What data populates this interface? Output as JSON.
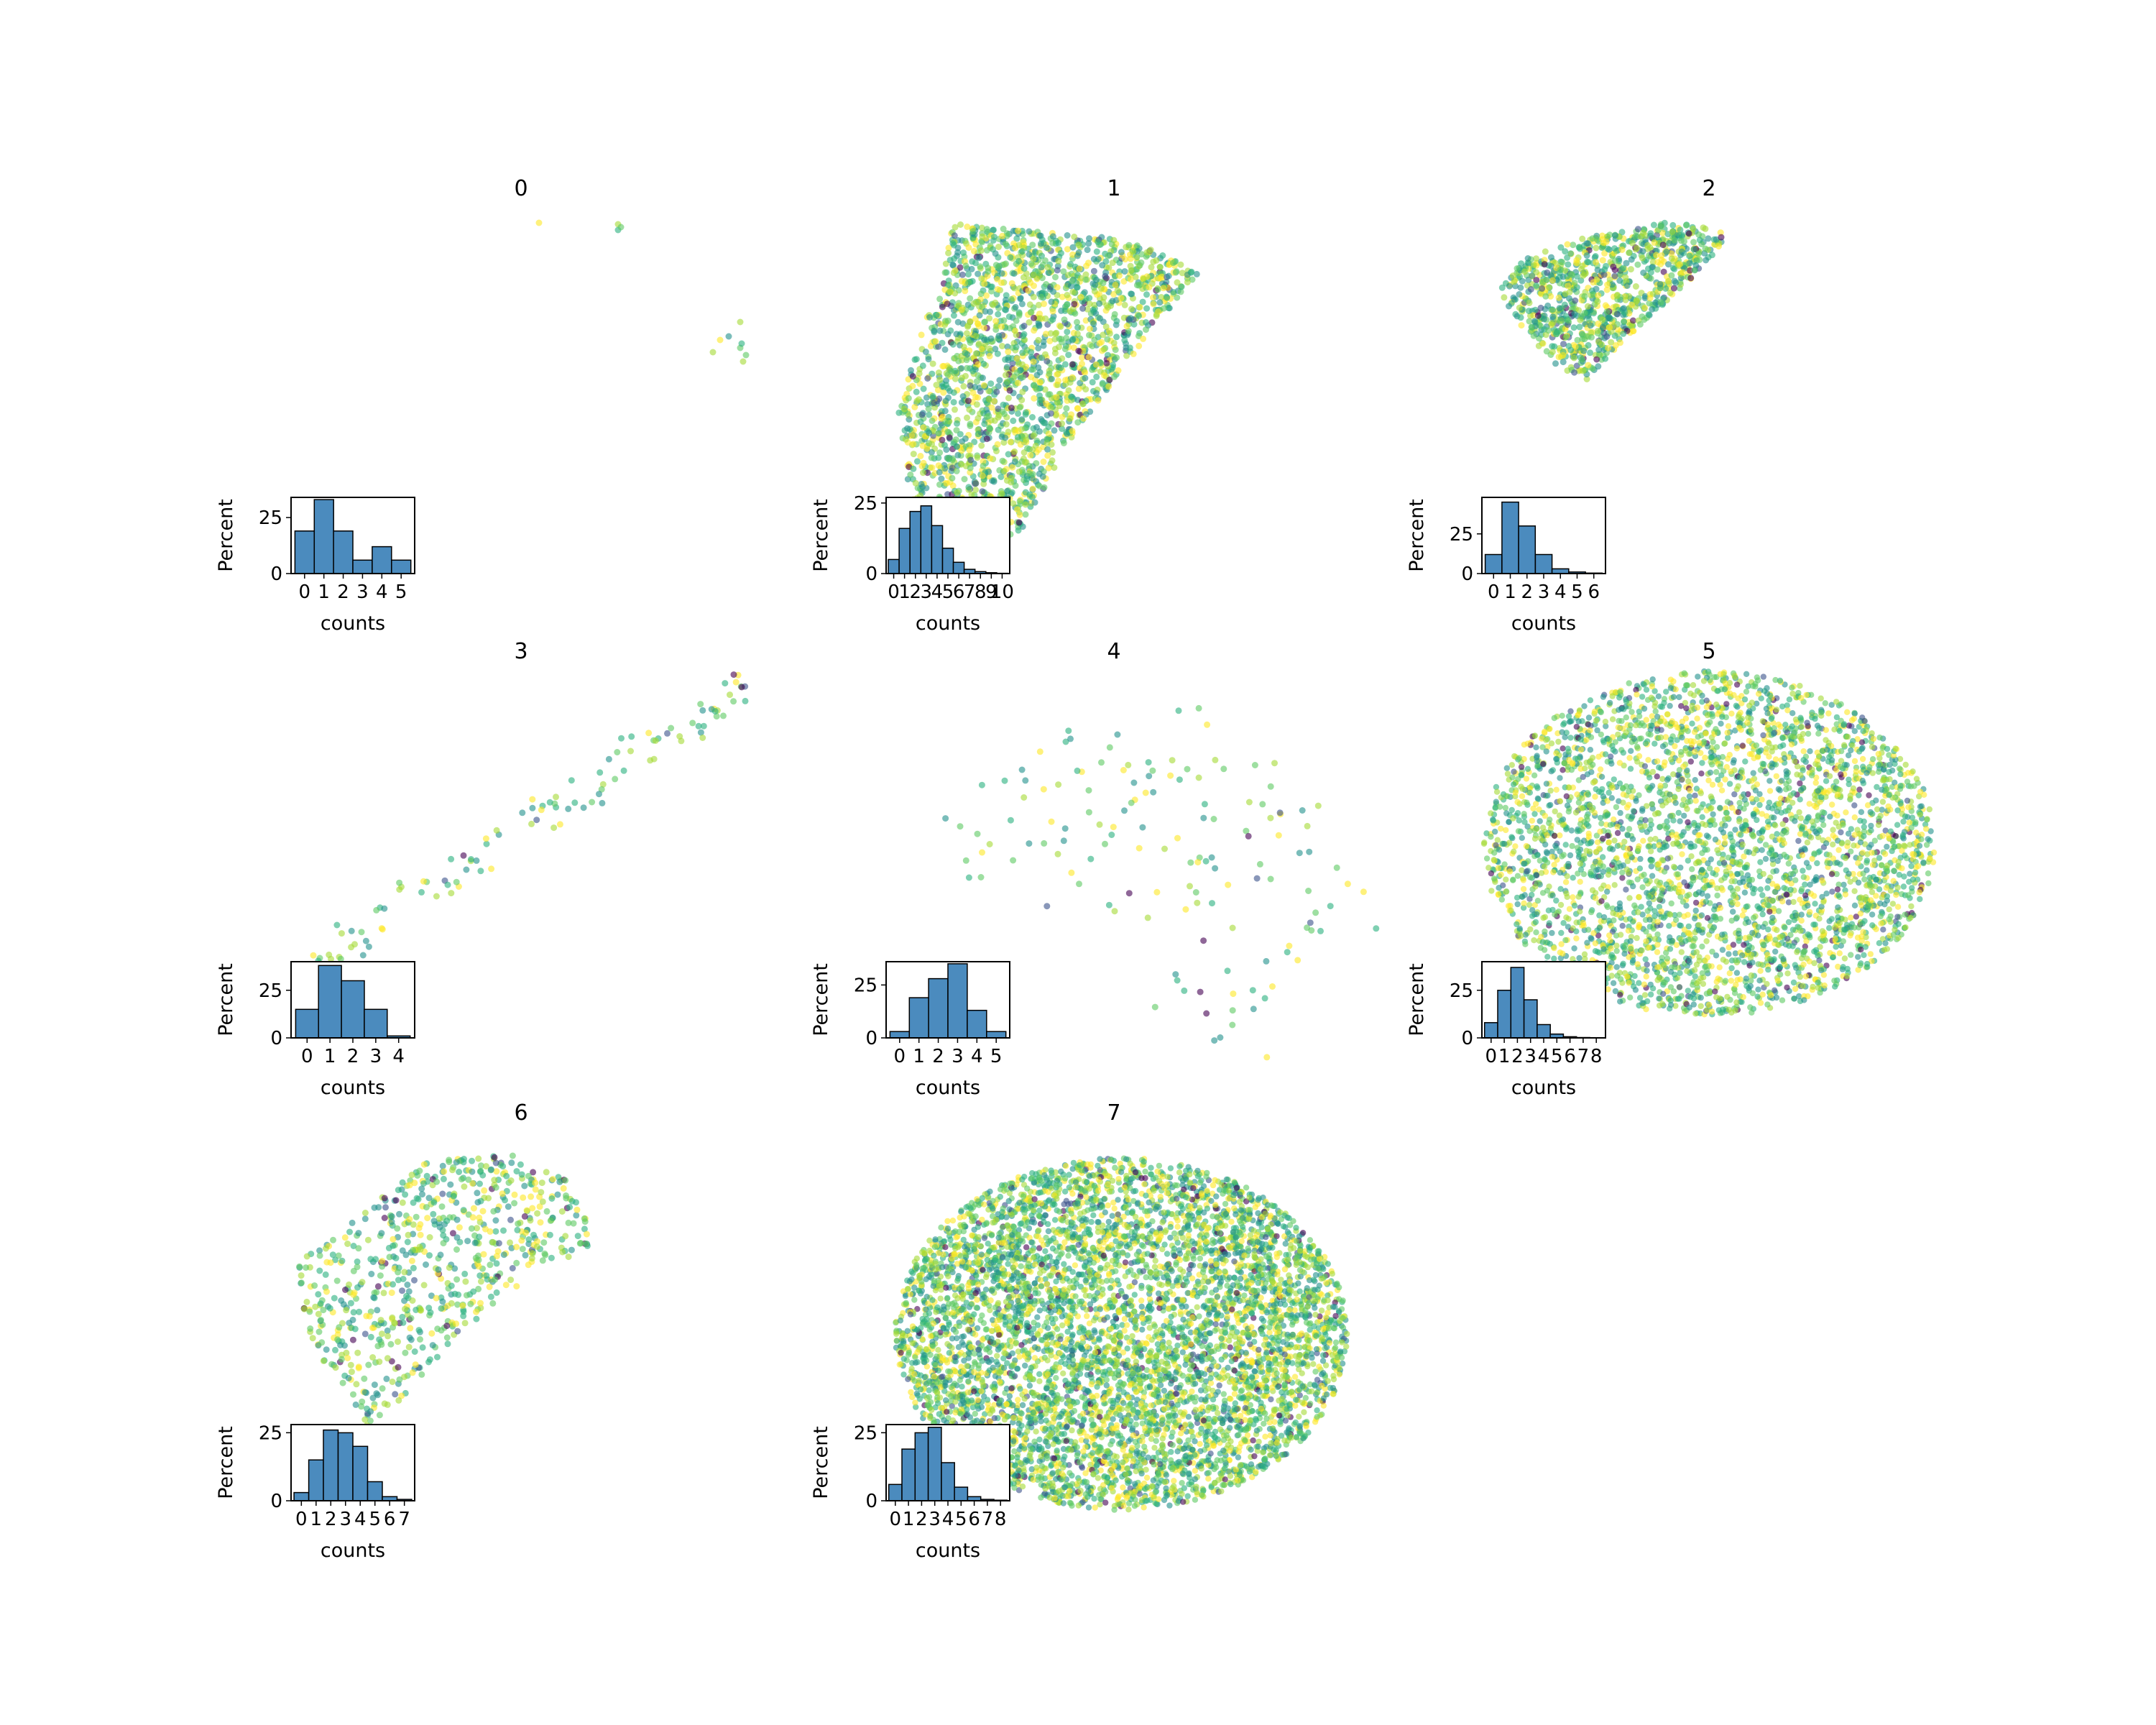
{
  "colors": {
    "hist_fill": "#4b8bbe",
    "hist_edge": "#000000",
    "colormap": "viridis",
    "point_palette": [
      "#440154",
      "#3b528b",
      "#21918c",
      "#2ab07f",
      "#5ec962",
      "#a5db36",
      "#fde725"
    ]
  },
  "chart_data": [
    {
      "panel": "0",
      "type": "scatter+histogram",
      "title": "0",
      "point_density": "very sparse",
      "point_count": 12,
      "shape": "few isolated points",
      "hist": {
        "xlabel": "counts",
        "ylabel": "Percent",
        "xticks": [
          "0",
          "1",
          "2",
          "3",
          "4",
          "5"
        ],
        "yticks": [
          "0",
          "25"
        ],
        "ylim": [
          0,
          34
        ],
        "bins": [
          0,
          1,
          2,
          3,
          4,
          5
        ],
        "values": [
          19,
          33,
          19,
          6,
          12,
          6
        ]
      }
    },
    {
      "panel": "1",
      "type": "scatter+histogram",
      "title": "1",
      "point_density": "dense",
      "point_count": 2000,
      "shape": "wedge",
      "hist": {
        "xlabel": "counts",
        "ylabel": "Percent",
        "xticks": [
          "0",
          "1",
          "2",
          "3",
          "4",
          "5",
          "6",
          "7",
          "8",
          "9",
          "10"
        ],
        "yticks": [
          "0",
          "25"
        ],
        "ylim": [
          0,
          27
        ],
        "bins": [
          0,
          1,
          2,
          3,
          4,
          5,
          6,
          7,
          8,
          9,
          10
        ],
        "values": [
          5,
          16,
          22,
          24,
          17,
          9,
          4,
          1.5,
          0.7,
          0.3,
          0.1
        ]
      }
    },
    {
      "panel": "2",
      "type": "scatter+histogram",
      "title": "2",
      "point_density": "medium",
      "point_count": 900,
      "shape": "wedge",
      "hist": {
        "xlabel": "counts",
        "ylabel": "Percent",
        "xticks": [
          "0",
          "1",
          "2",
          "3",
          "4",
          "5",
          "6"
        ],
        "yticks": [
          "0",
          "25"
        ],
        "ylim": [
          0,
          48
        ],
        "bins": [
          0,
          1,
          2,
          3,
          4,
          5,
          6
        ],
        "values": [
          12,
          45,
          30,
          12,
          3,
          1,
          0.3
        ]
      }
    },
    {
      "panel": "3",
      "type": "scatter+histogram",
      "title": "3",
      "point_density": "sparse",
      "point_count": 110,
      "shape": "diagonal band",
      "hist": {
        "xlabel": "counts",
        "ylabel": "Percent",
        "xticks": [
          "0",
          "1",
          "2",
          "3",
          "4"
        ],
        "yticks": [
          "0",
          "25"
        ],
        "ylim": [
          0,
          40
        ],
        "bins": [
          0,
          1,
          2,
          3,
          4
        ],
        "values": [
          15,
          38,
          30,
          15,
          1
        ]
      }
    },
    {
      "panel": "4",
      "type": "scatter+histogram",
      "title": "4",
      "point_density": "sparse",
      "point_count": 140,
      "shape": "scattered clusters",
      "hist": {
        "xlabel": "counts",
        "ylabel": "Percent",
        "xticks": [
          "0",
          "1",
          "2",
          "3",
          "4",
          "5"
        ],
        "yticks": [
          "0",
          "25"
        ],
        "ylim": [
          0,
          36
        ],
        "bins": [
          0,
          1,
          2,
          3,
          4,
          5
        ],
        "values": [
          3,
          19,
          28,
          35,
          13,
          3
        ]
      }
    },
    {
      "panel": "5",
      "type": "scatter+histogram",
      "title": "5",
      "point_density": "dense",
      "point_count": 3500,
      "shape": "ellipse",
      "hist": {
        "xlabel": "counts",
        "ylabel": "Percent",
        "xticks": [
          "0",
          "1",
          "2",
          "3",
          "4",
          "5",
          "6",
          "7",
          "8"
        ],
        "yticks": [
          "0",
          "25"
        ],
        "ylim": [
          0,
          40
        ],
        "bins": [
          0,
          1,
          2,
          3,
          4,
          5,
          6,
          7,
          8
        ],
        "values": [
          8,
          25,
          37,
          20,
          7,
          2,
          0.6,
          0.2,
          0.1
        ]
      }
    },
    {
      "panel": "6",
      "type": "scatter+histogram",
      "title": "6",
      "point_density": "medium",
      "point_count": 700,
      "shape": "wedge",
      "hist": {
        "xlabel": "counts",
        "ylabel": "Percent",
        "xticks": [
          "0",
          "1",
          "2",
          "3",
          "4",
          "5",
          "6",
          "7"
        ],
        "yticks": [
          "0",
          "25"
        ],
        "ylim": [
          0,
          28
        ],
        "bins": [
          0,
          1,
          2,
          3,
          4,
          5,
          6,
          7
        ],
        "values": [
          3,
          15,
          26,
          25,
          20,
          7,
          1.5,
          0.5
        ]
      }
    },
    {
      "panel": "7",
      "type": "scatter+histogram",
      "title": "7",
      "point_density": "very dense",
      "point_count": 6000,
      "shape": "ellipse",
      "hist": {
        "xlabel": "counts",
        "ylabel": "Percent",
        "xticks": [
          "0",
          "1",
          "2",
          "3",
          "4",
          "5",
          "6",
          "7",
          "8"
        ],
        "yticks": [
          "0",
          "25"
        ],
        "ylim": [
          0,
          28
        ],
        "bins": [
          0,
          1,
          2,
          3,
          4,
          5,
          6,
          7,
          8
        ],
        "values": [
          6,
          19,
          25,
          27,
          14,
          5,
          1.5,
          0.5,
          0.2
        ]
      }
    }
  ]
}
